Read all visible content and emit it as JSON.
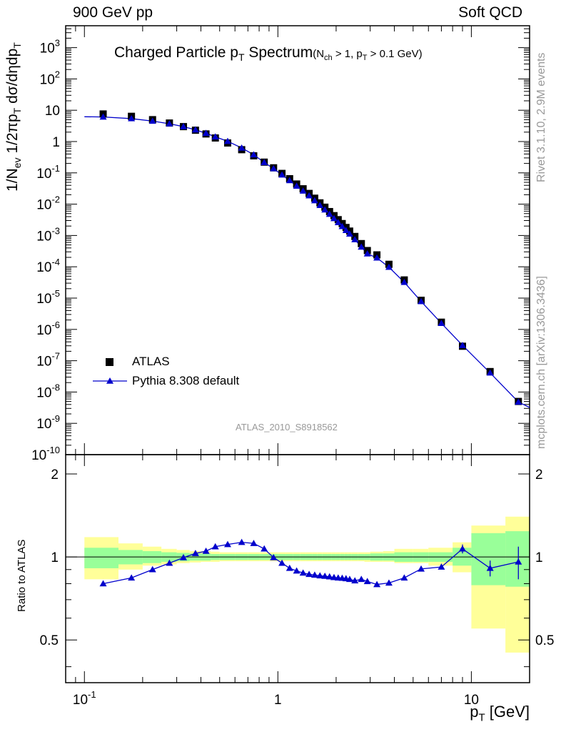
{
  "header": {
    "left": "900 GeV pp",
    "right": "Soft QCD"
  },
  "side": {
    "rivet": "Rivet 3.1.10,  2.9M events",
    "mcplots": "mcplots.cern.ch [arXiv:1306.3436]"
  },
  "title": {
    "main": "Charged Particle p",
    "main_sub": "T",
    "main_tail": " Spectrum",
    "cond": "(N",
    "cond_sub1": "ch",
    "cond_mid": " > 1, p",
    "cond_sub2": "T",
    "cond_tail": " > 0.1 GeV)"
  },
  "analysis_tag": "ATLAS_2010_S8918562",
  "legend": {
    "data": "ATLAS",
    "mc": "Pythia 8.308 default"
  },
  "colors": {
    "data": "#000000",
    "mc": "#0000cc",
    "band_inner": "#99ff99",
    "band_outer": "#ffff99",
    "side_text": "#999999"
  },
  "chart_data": [
    {
      "type": "line",
      "xlabel": "p_T [GeV]",
      "ylabel": "1/N_ev 1/2πp_T dσ/dηdp_T",
      "x_scale": "log",
      "y_scale": "log",
      "xlim": [
        0.08,
        20
      ],
      "ylim": [
        1e-10,
        5000
      ],
      "y_ticks": [
        -10,
        -9,
        -8,
        -7,
        -6,
        -5,
        -4,
        -3,
        -2,
        -1,
        0,
        1,
        2,
        3
      ],
      "x_ticks": [
        0.1,
        1,
        10
      ],
      "series": [
        {
          "name": "ATLAS",
          "marker": "square",
          "x": [
            0.125,
            0.175,
            0.225,
            0.275,
            0.325,
            0.375,
            0.425,
            0.475,
            0.55,
            0.65,
            0.75,
            0.85,
            0.95,
            1.05,
            1.15,
            1.25,
            1.35,
            1.45,
            1.55,
            1.65,
            1.75,
            1.85,
            1.95,
            2.05,
            2.15,
            2.25,
            2.35,
            2.5,
            2.7,
            2.9,
            3.25,
            3.75,
            4.5,
            5.5,
            7.0,
            9.0,
            12.5,
            17.5
          ],
          "y": [
            7.6,
            6.4,
            5.0,
            3.9,
            3.0,
            2.3,
            1.75,
            1.3,
            0.9,
            0.55,
            0.35,
            0.22,
            0.145,
            0.096,
            0.065,
            0.044,
            0.031,
            0.022,
            0.0155,
            0.011,
            0.008,
            0.0058,
            0.0043,
            0.0032,
            0.0024,
            0.0018,
            0.00138,
            0.00093,
            0.00055,
            0.00033,
            0.00024,
            0.00012,
            3.8e-05,
            8.5e-06,
            1.7e-06,
            2.9e-07,
            4.5e-08,
            5e-09
          ]
        },
        {
          "name": "Pythia 8.308 default",
          "marker": "triangle",
          "x": [
            0.125,
            0.175,
            0.225,
            0.275,
            0.325,
            0.375,
            0.425,
            0.475,
            0.55,
            0.65,
            0.75,
            0.85,
            0.95,
            1.05,
            1.15,
            1.25,
            1.35,
            1.45,
            1.55,
            1.65,
            1.75,
            1.85,
            1.95,
            2.05,
            2.15,
            2.25,
            2.35,
            2.5,
            2.7,
            2.9,
            3.25,
            3.75,
            4.5,
            5.5,
            7.0,
            9.0,
            12.5,
            17.5
          ],
          "y": [
            6.1,
            5.4,
            4.5,
            3.7,
            3.0,
            2.37,
            1.84,
            1.42,
            1.02,
            0.625,
            0.38,
            0.215,
            0.137,
            0.086,
            0.057,
            0.038,
            0.0265,
            0.0187,
            0.013,
            0.0092,
            0.0066,
            0.0048,
            0.0035,
            0.0026,
            0.00195,
            0.00146,
            0.00112,
            0.00074,
            0.00043,
            0.00026,
            0.000193,
            9.7e-05,
            3.2e-05,
            7.8e-06,
            1.57e-06,
            3.1e-07,
            4.1e-08,
            4.8e-09
          ]
        }
      ]
    },
    {
      "type": "line",
      "ylabel": "Ratio to ATLAS",
      "x_scale": "log",
      "xlim": [
        0.08,
        20
      ],
      "ylim": [
        0.35,
        2.35
      ],
      "y_ticks": [
        0.5,
        1,
        2
      ],
      "reference_line": 1,
      "bands": {
        "edges": [
          0.1,
          0.15,
          0.2,
          0.25,
          0.3,
          0.35,
          0.4,
          0.45,
          0.5,
          0.6,
          0.7,
          0.8,
          0.9,
          1.0,
          1.1,
          1.2,
          1.3,
          1.4,
          1.5,
          1.6,
          1.7,
          1.8,
          1.9,
          2.0,
          2.1,
          2.2,
          2.3,
          2.4,
          2.6,
          2.8,
          3.0,
          3.5,
          4.0,
          5.0,
          6.0,
          8.0,
          10.0,
          15.0,
          20.0
        ],
        "inner_low": [
          0.91,
          0.94,
          0.95,
          0.96,
          0.965,
          0.97,
          0.97,
          0.975,
          0.975,
          0.975,
          0.975,
          0.975,
          0.975,
          0.975,
          0.975,
          0.975,
          0.975,
          0.975,
          0.975,
          0.975,
          0.975,
          0.975,
          0.975,
          0.975,
          0.975,
          0.975,
          0.975,
          0.975,
          0.975,
          0.975,
          0.97,
          0.97,
          0.96,
          0.96,
          0.96,
          0.93,
          0.79,
          0.78
        ],
        "inner_high": [
          1.08,
          1.06,
          1.05,
          1.04,
          1.035,
          1.03,
          1.03,
          1.025,
          1.025,
          1.025,
          1.025,
          1.025,
          1.025,
          1.025,
          1.025,
          1.025,
          1.025,
          1.025,
          1.025,
          1.025,
          1.025,
          1.025,
          1.025,
          1.025,
          1.025,
          1.025,
          1.025,
          1.025,
          1.025,
          1.025,
          1.03,
          1.03,
          1.04,
          1.04,
          1.04,
          1.08,
          1.22,
          1.24
        ],
        "outer_low": [
          0.83,
          0.9,
          0.93,
          0.94,
          0.95,
          0.955,
          0.96,
          0.96,
          0.965,
          0.965,
          0.965,
          0.965,
          0.965,
          0.965,
          0.965,
          0.965,
          0.965,
          0.965,
          0.965,
          0.965,
          0.965,
          0.965,
          0.965,
          0.965,
          0.965,
          0.965,
          0.965,
          0.965,
          0.965,
          0.96,
          0.96,
          0.96,
          0.95,
          0.95,
          0.93,
          0.88,
          0.55,
          0.45
        ],
        "outer_high": [
          1.18,
          1.12,
          1.09,
          1.07,
          1.06,
          1.05,
          1.05,
          1.045,
          1.04,
          1.04,
          1.04,
          1.04,
          1.04,
          1.04,
          1.04,
          1.04,
          1.04,
          1.04,
          1.04,
          1.04,
          1.04,
          1.04,
          1.04,
          1.04,
          1.04,
          1.04,
          1.04,
          1.04,
          1.04,
          1.04,
          1.045,
          1.05,
          1.07,
          1.07,
          1.08,
          1.13,
          1.3,
          1.4
        ]
      },
      "series": [
        {
          "name": "Pythia 8.308 default",
          "marker": "triangle",
          "x": [
            0.125,
            0.175,
            0.225,
            0.275,
            0.325,
            0.375,
            0.425,
            0.475,
            0.55,
            0.65,
            0.75,
            0.85,
            0.95,
            1.05,
            1.15,
            1.25,
            1.35,
            1.45,
            1.55,
            1.65,
            1.75,
            1.85,
            1.95,
            2.05,
            2.15,
            2.25,
            2.35,
            2.5,
            2.7,
            2.9,
            3.25,
            3.75,
            4.5,
            5.5,
            7.0,
            9.0,
            12.5,
            17.5
          ],
          "y": [
            0.8,
            0.84,
            0.9,
            0.95,
            0.995,
            1.03,
            1.05,
            1.09,
            1.11,
            1.13,
            1.12,
            1.07,
            0.995,
            0.95,
            0.91,
            0.89,
            0.875,
            0.865,
            0.86,
            0.855,
            0.852,
            0.848,
            0.843,
            0.84,
            0.838,
            0.835,
            0.83,
            0.82,
            0.83,
            0.815,
            0.795,
            0.805,
            0.84,
            0.905,
            0.92,
            1.07,
            0.91,
            0.96
          ],
          "errors": [
            0,
            0,
            0,
            0,
            0,
            0,
            0,
            0,
            0,
            0,
            0,
            0,
            0,
            0,
            0,
            0,
            0,
            0,
            0,
            0,
            0,
            0,
            0,
            0,
            0,
            0,
            0,
            0,
            0,
            0,
            0,
            0,
            0,
            0,
            0,
            0.04,
            0.06,
            0.13
          ]
        }
      ]
    }
  ]
}
